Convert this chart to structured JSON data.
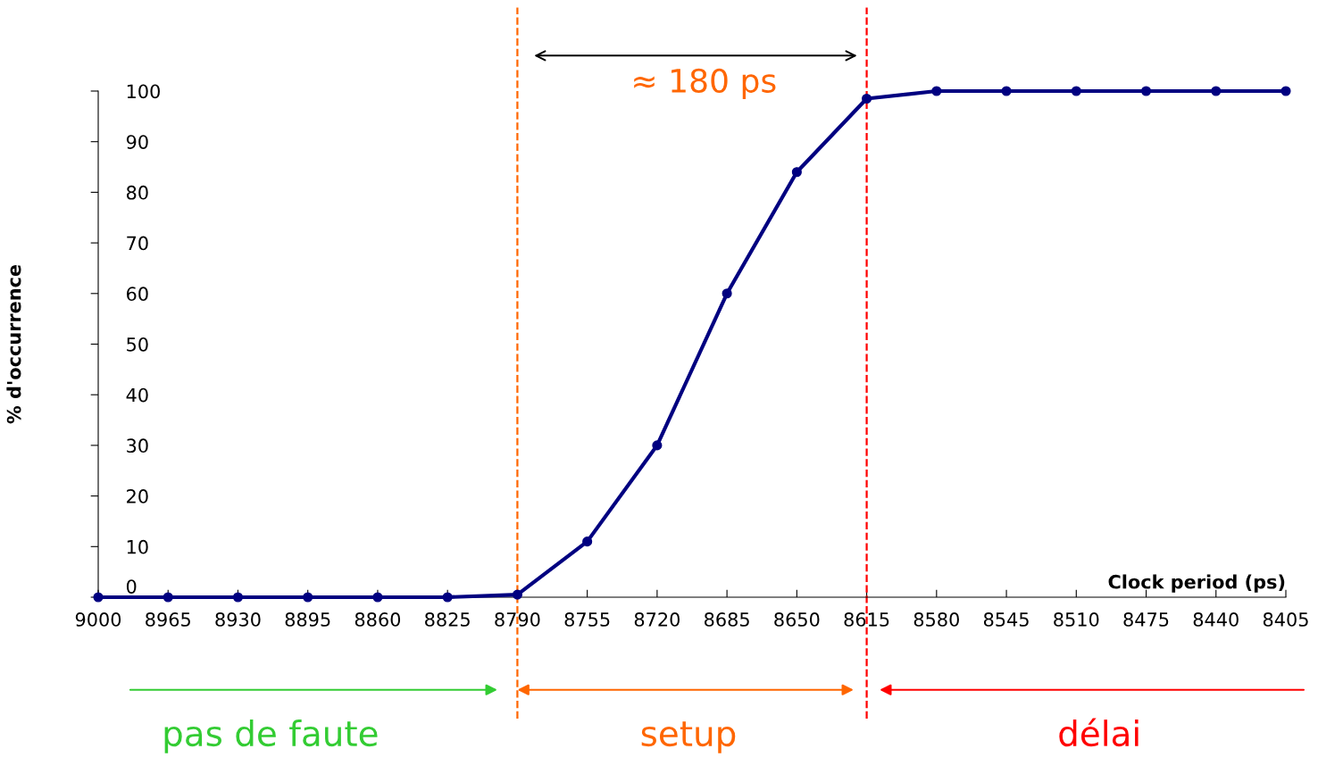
{
  "chart_data": {
    "type": "line",
    "xlabel": "Clock period (ps)",
    "ylabel": "% d'occurrence",
    "x": [
      9000,
      8965,
      8930,
      8895,
      8860,
      8825,
      8790,
      8755,
      8720,
      8685,
      8650,
      8615,
      8580,
      8545,
      8510,
      8475,
      8440,
      8405
    ],
    "series": [
      {
        "color": "#000080",
        "values": [
          0,
          0,
          0,
          0,
          0,
          0,
          0.5,
          11,
          30,
          60,
          84,
          98.5,
          100,
          100,
          100,
          100,
          100,
          100
        ]
      }
    ],
    "xlim": [
      9000,
      8405
    ],
    "xticks": [
      9000,
      8965,
      8930,
      8895,
      8860,
      8825,
      8790,
      8755,
      8720,
      8685,
      8650,
      8615,
      8580,
      8545,
      8510,
      8475,
      8440,
      8405
    ],
    "ylim": [
      0,
      100
    ],
    "yticks": [
      0,
      10,
      20,
      30,
      40,
      50,
      60,
      70,
      80,
      90,
      100
    ],
    "marker": "circle",
    "line_style": "solid",
    "grid": false,
    "ref_lines": [
      {
        "axis": "x",
        "value": 8790,
        "color": "#ff6600",
        "line_style": "dashed"
      },
      {
        "axis": "x",
        "value": 8615,
        "color": "#ff0000",
        "line_style": "dashed"
      }
    ],
    "annotations": [
      "≈ 180 ps",
      "pas de faute",
      "setup",
      "délai"
    ]
  }
}
